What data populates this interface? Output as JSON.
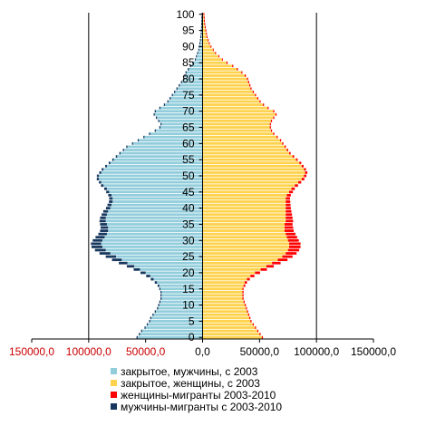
{
  "chart_data": {
    "type": "bar",
    "orientation": "horizontal",
    "subtype": "population-pyramid",
    "title": "",
    "xlabel": "",
    "ylabel": "",
    "xlim": [
      -150000,
      150000
    ],
    "ylim": [
      0,
      100
    ],
    "grid": "vertical lines at ±100000",
    "legend_position": "bottom",
    "x_ticks": [
      -150000,
      -100000,
      -50000,
      0,
      50000,
      100000,
      150000
    ],
    "x_tick_labels": [
      "150000,0",
      "100000,0",
      "50000,0",
      "0,0",
      "50000,0",
      "100000,0",
      "150000,0"
    ],
    "x_tick_colors": [
      "#cc0000",
      "#cc0000",
      "#cc0000",
      "#000000",
      "#000000",
      "#000000",
      "#000000"
    ],
    "y_ticks": [
      0,
      5,
      10,
      15,
      20,
      25,
      30,
      35,
      40,
      45,
      50,
      55,
      60,
      65,
      70,
      75,
      80,
      85,
      90,
      95,
      100
    ],
    "y_tick_labels": [
      "0",
      "5",
      "10",
      "15",
      "20",
      "25",
      "30",
      "35",
      "40",
      "45",
      "50",
      "55",
      "60",
      "65",
      "70",
      "75",
      "80",
      "85",
      "90",
      "95",
      "100"
    ],
    "ages": [
      0,
      1,
      2,
      3,
      4,
      5,
      6,
      7,
      8,
      9,
      10,
      11,
      12,
      13,
      14,
      15,
      16,
      17,
      18,
      19,
      20,
      21,
      22,
      23,
      24,
      25,
      26,
      27,
      28,
      29,
      30,
      31,
      32,
      33,
      34,
      35,
      36,
      37,
      38,
      39,
      40,
      41,
      42,
      43,
      44,
      45,
      46,
      47,
      48,
      49,
      50,
      51,
      52,
      53,
      54,
      55,
      56,
      57,
      58,
      59,
      60,
      61,
      62,
      63,
      64,
      65,
      66,
      67,
      68,
      69,
      70,
      71,
      72,
      73,
      74,
      75,
      76,
      77,
      78,
      79,
      80,
      81,
      82,
      83,
      84,
      85,
      86,
      87,
      88,
      89,
      90,
      91,
      92,
      93,
      94,
      95,
      96,
      97,
      98,
      99,
      100
    ],
    "series": [
      {
        "name": "закрытое, мужчины,  с 2003",
        "color": "#92cddc",
        "side": "left",
        "values": [
          -57000,
          -55000,
          -53000,
          -50000,
          -48000,
          -46000,
          -45000,
          -43000,
          -41000,
          -39000,
          -38000,
          -37000,
          -36000,
          -36000,
          -36000,
          -37000,
          -38000,
          -40000,
          -43000,
          -46000,
          -50000,
          -55000,
          -60000,
          -66000,
          -71000,
          -76000,
          -81000,
          -85000,
          -88000,
          -89000,
          -88000,
          -86000,
          -84000,
          -83000,
          -83000,
          -84000,
          -85000,
          -85000,
          -84000,
          -83000,
          -81000,
          -80000,
          -79000,
          -79000,
          -80000,
          -82000,
          -84000,
          -87000,
          -89000,
          -91000,
          -91000,
          -89000,
          -87000,
          -84000,
          -81000,
          -78000,
          -75000,
          -72000,
          -69000,
          -66000,
          -61000,
          -56000,
          -51000,
          -46000,
          -41000,
          -37000,
          -36000,
          -38000,
          -40000,
          -42000,
          -41000,
          -37000,
          -33000,
          -30000,
          -28000,
          -26000,
          -24000,
          -22000,
          -20000,
          -18000,
          -16000,
          -15000,
          -14000,
          -12000,
          -10000,
          -8000,
          -6000,
          -5000,
          -4000,
          -3000,
          -2500,
          -2000,
          -1500,
          -1200,
          -900,
          -700,
          -500,
          -400,
          -300,
          -200,
          -100
        ]
      },
      {
        "name": "закрытое, женщины,  с 2003",
        "color": "#ffd24d",
        "side": "right",
        "values": [
          52000,
          50000,
          48000,
          46000,
          44000,
          42000,
          41000,
          40000,
          39000,
          38000,
          37000,
          36000,
          35000,
          35000,
          35000,
          35000,
          36000,
          37000,
          39000,
          42000,
          46000,
          51000,
          56000,
          61000,
          66000,
          70000,
          73000,
          75000,
          76000,
          76000,
          75000,
          74000,
          73000,
          72000,
          72000,
          72000,
          73000,
          73000,
          73000,
          73000,
          73000,
          73000,
          73000,
          73000,
          74000,
          76000,
          78000,
          81000,
          84000,
          87000,
          89000,
          90000,
          89000,
          87000,
          85000,
          82000,
          79000,
          76000,
          74000,
          72000,
          70000,
          68000,
          65000,
          62000,
          60000,
          59000,
          59000,
          60000,
          62000,
          64000,
          62000,
          57000,
          53000,
          50000,
          48000,
          46000,
          44000,
          42000,
          41000,
          40000,
          39000,
          37000,
          34000,
          30000,
          26000,
          21000,
          17000,
          14000,
          11000,
          9000,
          7000,
          5500,
          4500,
          3500,
          3000,
          2500,
          2000,
          1500,
          1200,
          1000,
          800
        ]
      },
      {
        "name": "женщины-мигранты  2003-2010",
        "color": "#ff0000",
        "side": "right",
        "values": [
          1000,
          1000,
          1000,
          1000,
          1000,
          1000,
          1000,
          1000,
          1000,
          1000,
          1000,
          1000,
          1000,
          1000,
          1000,
          1000,
          1500,
          2000,
          2500,
          3500,
          4500,
          5500,
          6500,
          7500,
          8500,
          9000,
          9500,
          9800,
          10000,
          10000,
          9500,
          9000,
          8500,
          8000,
          7500,
          7000,
          6500,
          6000,
          5500,
          5000,
          4500,
          4200,
          4000,
          3800,
          3500,
          3300,
          3000,
          2800,
          2600,
          2400,
          2200,
          2000,
          1800,
          1700,
          1600,
          1500,
          1400,
          1300,
          1200,
          1100,
          1000,
          1000,
          1000,
          1000,
          1000,
          1000,
          1000,
          1000,
          1000,
          1000,
          1000,
          1000,
          1000,
          1000,
          1000,
          1000,
          1000,
          1000,
          1000,
          1000,
          1000,
          1000,
          1000,
          1000,
          1000,
          1000,
          800,
          800,
          800,
          800,
          800,
          800,
          800,
          800,
          800,
          800,
          800,
          800,
          800,
          800,
          800
        ]
      },
      {
        "name": "мужчины-мигранты  с 2003-2010",
        "color": "#17375e",
        "side": "left",
        "values": [
          -1000,
          -1000,
          -1000,
          -1000,
          -1000,
          -1000,
          -1000,
          -1000,
          -1000,
          -1000,
          -1000,
          -1000,
          -1000,
          -1000,
          -1000,
          -1000,
          -1500,
          -2000,
          -2500,
          -3500,
          -4500,
          -5500,
          -6500,
          -7500,
          -8500,
          -9000,
          -9500,
          -9500,
          -9500,
          -9000,
          -8500,
          -8000,
          -7500,
          -7000,
          -6500,
          -6000,
          -5500,
          -5000,
          -4600,
          -4200,
          -3800,
          -3500,
          -3200,
          -3000,
          -2800,
          -2600,
          -2400,
          -2200,
          -2000,
          -1900,
          -1800,
          -1700,
          -1600,
          -1500,
          -1400,
          -1300,
          -1200,
          -1100,
          -1000,
          -1000,
          -1000,
          -1000,
          -1000,
          -1000,
          -1000,
          -1000,
          -1000,
          -1000,
          -1000,
          -1000,
          -1000,
          -1000,
          -1000,
          -1000,
          -1000,
          -1000,
          -1000,
          -1000,
          -1000,
          -1000,
          -1000,
          -1000,
          -1000,
          -1000,
          -1000,
          -1000,
          -800,
          -800,
          -800,
          -800,
          -800,
          -800,
          -800,
          -800,
          -800,
          -800,
          -800,
          -800,
          -800,
          -800,
          -800
        ]
      }
    ]
  }
}
